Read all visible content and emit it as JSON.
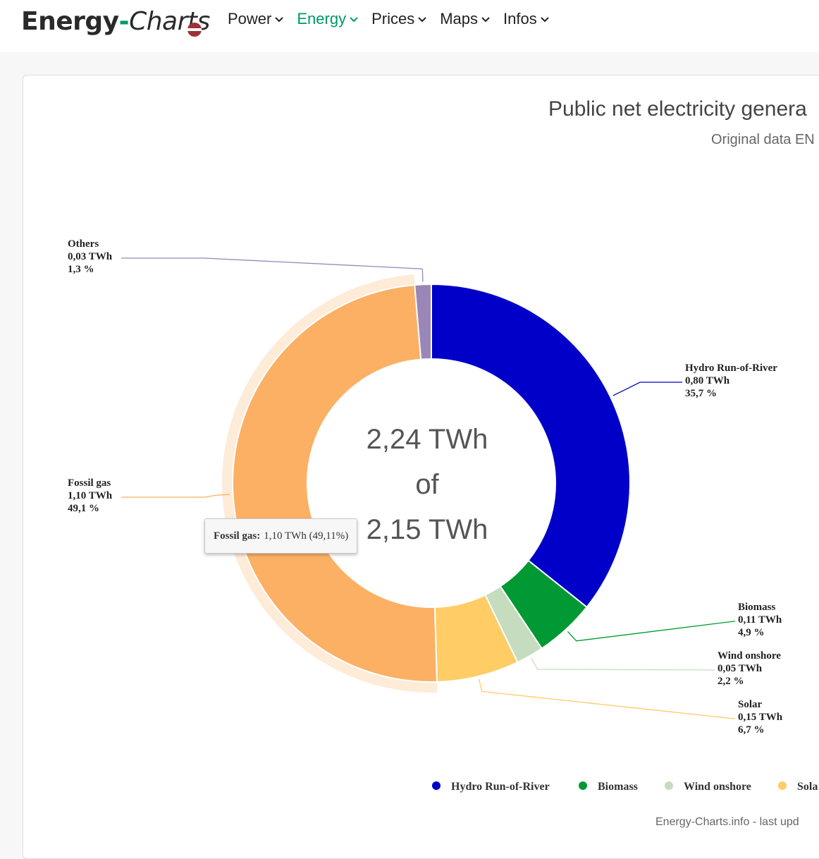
{
  "header": {
    "logo_part1": "Energy",
    "logo_dash": "-",
    "logo_part2": "Charts",
    "flag_colors": [
      "#9e3039",
      "#ffffff",
      "#9e3039"
    ],
    "nav": [
      {
        "label": "Power",
        "active": false
      },
      {
        "label": "Energy",
        "active": true
      },
      {
        "label": "Prices",
        "active": false
      },
      {
        "label": "Maps",
        "active": false
      },
      {
        "label": "Infos",
        "active": false
      }
    ]
  },
  "chart_data": {
    "type": "pie",
    "title": "Public net electricity genera",
    "subtitle": "Original data EN",
    "center_line1": "2,24 TWh",
    "center_line2": "of",
    "center_line3": "2,15 TWh",
    "series": [
      {
        "name": "Hydro Run-of-River",
        "value": 0.8,
        "value_label": "0,80 TWh",
        "percent_label": "35,7 %",
        "color": "#0000c8"
      },
      {
        "name": "Biomass",
        "value": 0.11,
        "value_label": "0,11 TWh",
        "percent_label": "4,9 %",
        "color": "#009933"
      },
      {
        "name": "Wind onshore",
        "value": 0.05,
        "value_label": "0,05 TWh",
        "percent_label": "2,2 %",
        "color": "#c5dcbf"
      },
      {
        "name": "Solar",
        "value": 0.15,
        "value_label": "0,15 TWh",
        "percent_label": "6,7 %",
        "color": "#ffcc66"
      },
      {
        "name": "Fossil gas",
        "value": 1.1,
        "value_label": "1,10 TWh",
        "percent_label": "49,1 %",
        "color": "#fcb064"
      },
      {
        "name": "Others",
        "value": 0.03,
        "value_label": "0,03 TWh",
        "percent_label": "1,3 %",
        "color": "#9b86b8"
      }
    ],
    "hovered": "Fossil gas",
    "tooltip": {
      "name": "Fossil gas:",
      "text": "1,10 TWh (49,11%)"
    },
    "legend": [
      "Hydro Run-of-River",
      "Biomass",
      "Wind onshore",
      "Sola"
    ],
    "legend_placement": "bottom",
    "credit": "Energy-Charts.info - last upd"
  }
}
